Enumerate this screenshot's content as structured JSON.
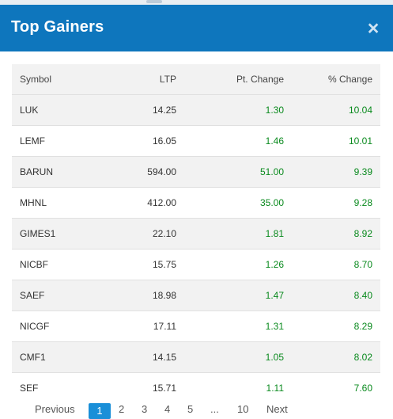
{
  "modal": {
    "title": "Top Gainers",
    "close_label": "×"
  },
  "table": {
    "headers": {
      "symbol": "Symbol",
      "ltp": "LTP",
      "pt_change": "Pt. Change",
      "pct_change": "% Change"
    },
    "rows": [
      {
        "symbol": "LUK",
        "ltp": "14.25",
        "pt_change": "1.30",
        "pct_change": "10.04"
      },
      {
        "symbol": "LEMF",
        "ltp": "16.05",
        "pt_change": "1.46",
        "pct_change": "10.01"
      },
      {
        "symbol": "BARUN",
        "ltp": "594.00",
        "pt_change": "51.00",
        "pct_change": "9.39"
      },
      {
        "symbol": "MHNL",
        "ltp": "412.00",
        "pt_change": "35.00",
        "pct_change": "9.28"
      },
      {
        "symbol": "GIMES1",
        "ltp": "22.10",
        "pt_change": "1.81",
        "pct_change": "8.92"
      },
      {
        "symbol": "NICBF",
        "ltp": "15.75",
        "pt_change": "1.26",
        "pct_change": "8.70"
      },
      {
        "symbol": "SAEF",
        "ltp": "18.98",
        "pt_change": "1.47",
        "pct_change": "8.40"
      },
      {
        "symbol": "NICGF",
        "ltp": "17.11",
        "pt_change": "1.31",
        "pct_change": "8.29"
      },
      {
        "symbol": "CMF1",
        "ltp": "14.15",
        "pt_change": "1.05",
        "pct_change": "8.02"
      },
      {
        "symbol": "SEF",
        "ltp": "15.71",
        "pt_change": "1.11",
        "pct_change": "7.60"
      }
    ]
  },
  "pagination": {
    "previous": "Previous",
    "pages": [
      "1",
      "2",
      "3",
      "4",
      "5",
      "...",
      "10"
    ],
    "current": "1",
    "next": "Next"
  },
  "colors": {
    "header_bg": "#0e76bd",
    "positive": "#0a8a1e",
    "active_page": "#1a8fd8"
  }
}
